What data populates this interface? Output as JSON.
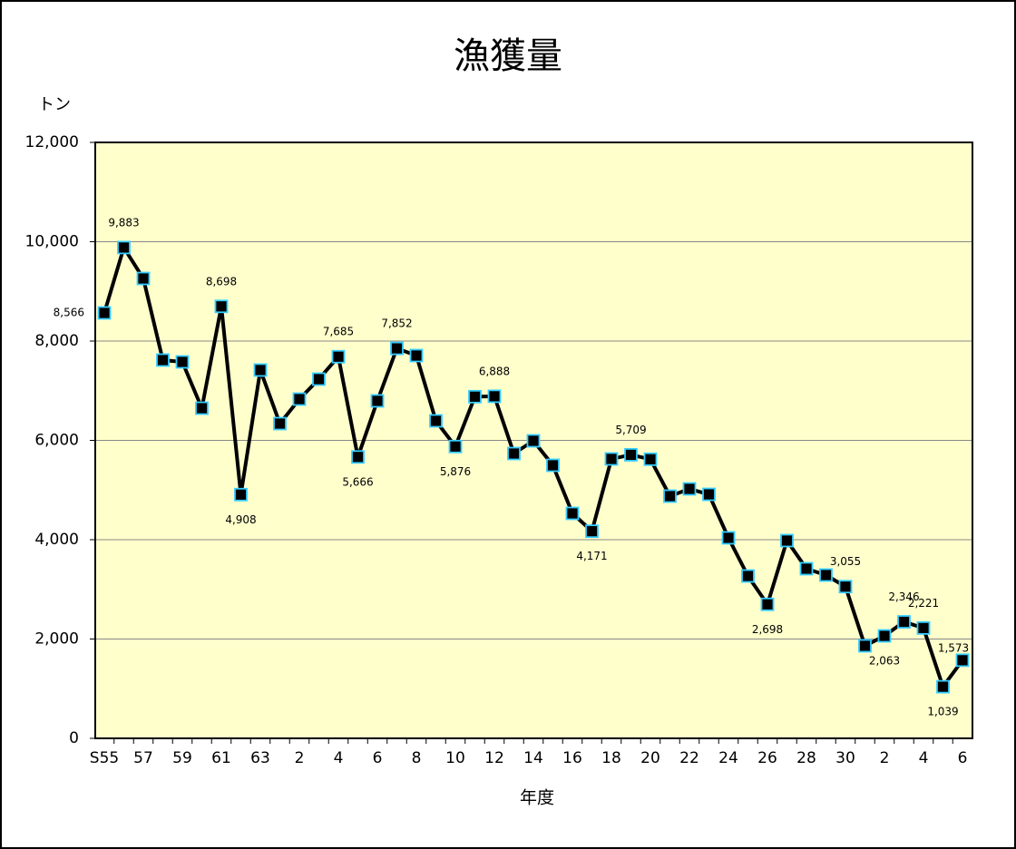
{
  "chart_data": {
    "type": "line",
    "title": "漁獲量",
    "y_label": "トン",
    "x_label": "年度",
    "categories": [
      "S55",
      null,
      "57",
      null,
      "59",
      null,
      "61",
      null,
      "63",
      null,
      "2",
      null,
      "4",
      null,
      "6",
      null,
      "8",
      null,
      "10",
      null,
      "12",
      null,
      "14",
      null,
      "16",
      null,
      "18",
      null,
      "20",
      null,
      "22",
      null,
      "24",
      null,
      "26",
      null,
      "28",
      null,
      "30",
      null,
      "2",
      null,
      "4",
      null,
      "6"
    ],
    "series": [
      {
        "name": "漁獲量",
        "color": "#000000",
        "marker_edge": "#33ccff",
        "values": [
          8566,
          9883,
          9260,
          7617,
          7580,
          6648,
          8698,
          4908,
          7416,
          6338,
          6831,
          7233,
          7685,
          5666,
          6795,
          7852,
          7708,
          6393,
          5876,
          6880,
          6888,
          5735,
          5991,
          5498,
          4530,
          4171,
          5626,
          5709,
          5620,
          4877,
          5023,
          4913,
          4037,
          3269,
          2698,
          3982,
          3416,
          3288,
          3055,
          1863,
          2063,
          2346,
          2221,
          1039,
          1573
        ],
        "value_labels": [
          "8,566",
          "9,883",
          null,
          null,
          null,
          null,
          "8,698",
          "4,908",
          null,
          null,
          null,
          null,
          "7,685",
          "5,666",
          null,
          "7,852",
          null,
          null,
          "5,876",
          null,
          "6,888",
          null,
          null,
          null,
          null,
          "4,171",
          null,
          "5,709",
          null,
          null,
          null,
          null,
          null,
          null,
          "2,698",
          null,
          null,
          null,
          "3,055",
          null,
          "2,063",
          "2,346",
          "2,221",
          "1,039",
          "1,573"
        ]
      }
    ],
    "ylim": [
      0,
      12000
    ],
    "yticks": [
      0,
      {
        "value": 2000,
        "label": "2,000"
      },
      {
        "value": 4000,
        "label": "4,000"
      },
      {
        "value": 6000,
        "label": "6,000"
      },
      {
        "value": 8000,
        "label": "8,000"
      },
      {
        "value": 10000,
        "label": "10,000"
      },
      {
        "value": 12000,
        "label": "12,000"
      }
    ],
    "grid": true,
    "plot_background": "#ffffcc"
  }
}
